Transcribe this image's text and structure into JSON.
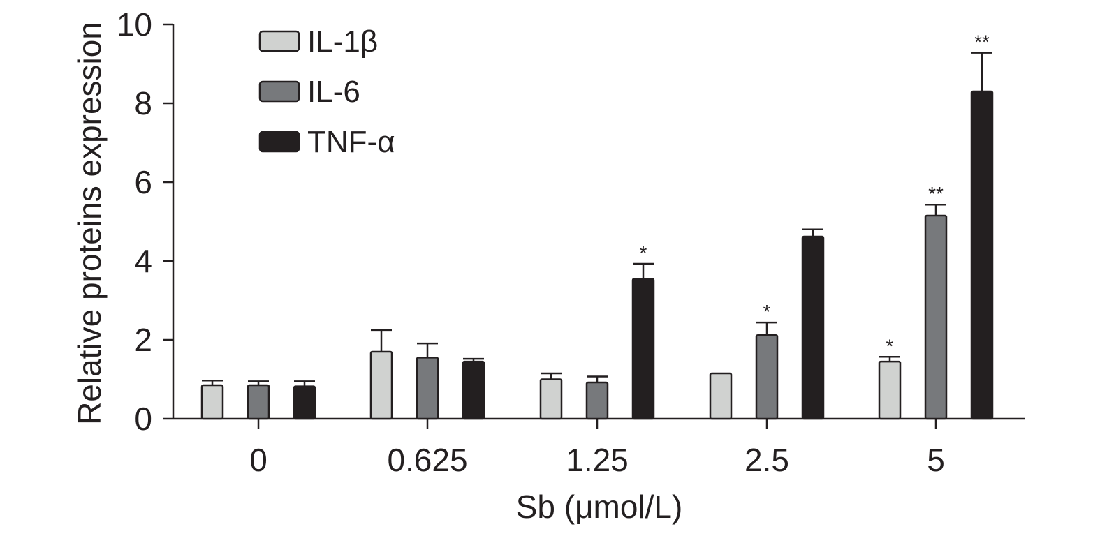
{
  "chart_data": {
    "type": "bar",
    "xlabel": "Sb (μmol/L)",
    "ylabel": "Relative proteins expression",
    "ylim": [
      0,
      10
    ],
    "yticks": [
      0,
      2,
      4,
      6,
      8,
      10
    ],
    "categories": [
      "0",
      "0.625",
      "1.25",
      "2.5",
      "5"
    ],
    "legend_position": "top-left",
    "series": [
      {
        "name": "IL-1β",
        "color": "#d0d2d0",
        "values": [
          0.85,
          1.7,
          1.0,
          1.15,
          1.45
        ],
        "errors": [
          0.12,
          0.55,
          0.15,
          0.0,
          0.12
        ],
        "significance": [
          "",
          "",
          "",
          "",
          "*"
        ]
      },
      {
        "name": "IL-6",
        "color": "#77797c",
        "values": [
          0.85,
          1.55,
          0.92,
          2.12,
          5.15
        ],
        "errors": [
          0.1,
          0.36,
          0.15,
          0.32,
          0.28
        ],
        "significance": [
          "",
          "",
          "",
          "*",
          "**"
        ]
      },
      {
        "name": "TNF-α",
        "color": "#231f20",
        "values": [
          0.82,
          1.45,
          3.55,
          4.62,
          8.3
        ],
        "errors": [
          0.13,
          0.07,
          0.38,
          0.18,
          0.98
        ],
        "significance": [
          "",
          "",
          "*",
          "",
          "**"
        ]
      }
    ]
  }
}
